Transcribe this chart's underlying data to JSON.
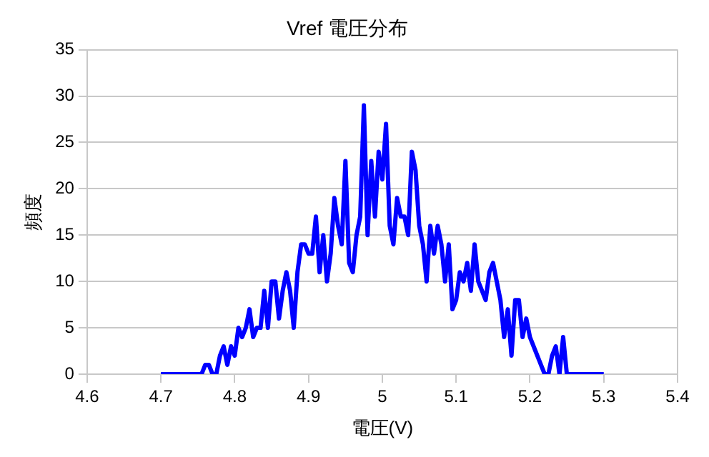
{
  "chart_data": {
    "type": "line",
    "title": "Vref 電圧分布",
    "xlabel": "電圧(V)",
    "ylabel": "頻度",
    "x": [
      4.7,
      4.705,
      4.71,
      4.715,
      4.72,
      4.725,
      4.73,
      4.735,
      4.74,
      4.745,
      4.75,
      4.755,
      4.76,
      4.765,
      4.77,
      4.775,
      4.78,
      4.785,
      4.79,
      4.795,
      4.8,
      4.805,
      4.81,
      4.815,
      4.82,
      4.825,
      4.83,
      4.835,
      4.84,
      4.845,
      4.85,
      4.855,
      4.86,
      4.865,
      4.87,
      4.875,
      4.88,
      4.885,
      4.89,
      4.895,
      4.9,
      4.905,
      4.91,
      4.915,
      4.92,
      4.925,
      4.93,
      4.935,
      4.94,
      4.945,
      4.95,
      4.955,
      4.96,
      4.965,
      4.97,
      4.975,
      4.98,
      4.985,
      4.99,
      4.995,
      5.0,
      5.005,
      5.01,
      5.015,
      5.02,
      5.025,
      5.03,
      5.035,
      5.04,
      5.045,
      5.05,
      5.055,
      5.06,
      5.065,
      5.07,
      5.075,
      5.08,
      5.085,
      5.09,
      5.095,
      5.1,
      5.105,
      5.11,
      5.115,
      5.12,
      5.125,
      5.13,
      5.135,
      5.14,
      5.145,
      5.15,
      5.155,
      5.16,
      5.165,
      5.17,
      5.175,
      5.18,
      5.185,
      5.19,
      5.195,
      5.2,
      5.205,
      5.21,
      5.215,
      5.22,
      5.225,
      5.23,
      5.235,
      5.24,
      5.245,
      5.25,
      5.255,
      5.26,
      5.265,
      5.27,
      5.275,
      5.28,
      5.285,
      5.29,
      5.295,
      5.3
    ],
    "series": [
      {
        "color": "#0000ff",
        "values": [
          0,
          0,
          0,
          0,
          0,
          0,
          0,
          0,
          0,
          0,
          0,
          0,
          1,
          1,
          0,
          0,
          2,
          3,
          1,
          3,
          2,
          5,
          4,
          5,
          7,
          4,
          5,
          5,
          9,
          5,
          10,
          10,
          6,
          9,
          11,
          9,
          5,
          11,
          14,
          14,
          13,
          13,
          17,
          11,
          15,
          10,
          13,
          19,
          16,
          14,
          23,
          12,
          11,
          15,
          17,
          29,
          15,
          23,
          17,
          24,
          21,
          27,
          16,
          14,
          19,
          17,
          17,
          15,
          24,
          22,
          16,
          14,
          10,
          16,
          13,
          16,
          14,
          10,
          14,
          7,
          8,
          11,
          10,
          12,
          9,
          14,
          10,
          9,
          8,
          11,
          12,
          10,
          8,
          4,
          7,
          2,
          8,
          8,
          4,
          6,
          4,
          3,
          2,
          1,
          0,
          0,
          2,
          3,
          0,
          4,
          0,
          0,
          0,
          0,
          0,
          0,
          0,
          0,
          0,
          0,
          0
        ]
      }
    ],
    "xlim": [
      4.6,
      5.4
    ],
    "xticks": [
      4.6,
      4.7,
      4.8,
      4.9,
      5,
      5.1,
      5.2,
      5.3,
      5.4
    ],
    "ylim": [
      0,
      35
    ],
    "yticks": [
      0,
      5,
      10,
      15,
      20,
      25,
      30,
      35
    ],
    "grid": "y",
    "legend": false,
    "marker": "none",
    "line_style": "solid"
  }
}
